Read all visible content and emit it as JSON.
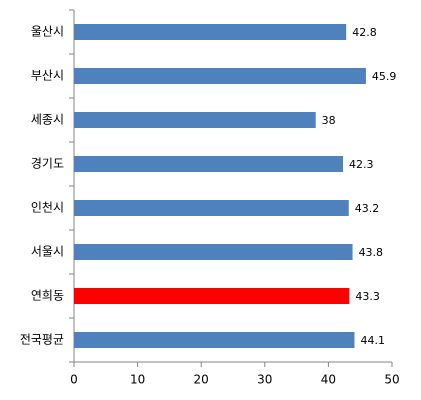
{
  "chart_data": {
    "type": "bar",
    "orientation": "horizontal",
    "categories": [
      "울산시",
      "부산시",
      "세종시",
      "경기도",
      "인천시",
      "서울시",
      "연희동",
      "전국평균"
    ],
    "values": [
      42.8,
      45.9,
      38,
      42.3,
      43.2,
      43.8,
      43.3,
      44.1
    ],
    "colors": [
      "#4f81bd",
      "#4f81bd",
      "#4f81bd",
      "#4f81bd",
      "#4f81bd",
      "#4f81bd",
      "#ff0000",
      "#4f81bd"
    ],
    "xlim": [
      0,
      50
    ],
    "xticks": [
      0,
      10,
      20,
      30,
      40,
      50
    ],
    "grid": false
  }
}
